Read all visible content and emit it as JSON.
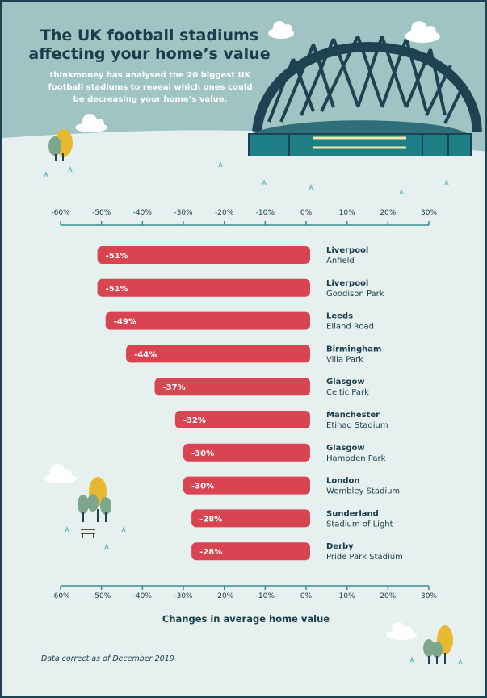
{
  "title_line1": "The UK football stadiums",
  "title_line2": "affecting your home’s value",
  "subtitle": "thinkmoney has analysed the 20 biggest UK football stadiums to reveal which ones could be decreasing your home’s value.",
  "footnote": "Data correct as of December 2019",
  "colors": {
    "bar": "#d94452",
    "text": "#1b3c4a",
    "axis": "#3a8e94",
    "header": "#9fc4c3",
    "background": "#e6f0ef"
  },
  "chart_data": {
    "type": "bar",
    "orientation": "horizontal",
    "xlabel": "Changes in average home value",
    "xlim": [
      -60,
      30
    ],
    "xticks": [
      "-60%",
      "-50%",
      "-40%",
      "-30%",
      "-20%",
      "-10%",
      "0%",
      "10%",
      "20%",
      "30%"
    ],
    "xtick_values": [
      -60,
      -50,
      -40,
      -30,
      -20,
      -10,
      0,
      10,
      20,
      30
    ],
    "categories": [
      {
        "city": "Liverpool",
        "stadium": "Anfield"
      },
      {
        "city": "Liverpool",
        "stadium": "Goodison Park"
      },
      {
        "city": "Leeds",
        "stadium": "Elland Road"
      },
      {
        "city": "Birmingham",
        "stadium": "Villa Park"
      },
      {
        "city": "Glasgow",
        "stadium": "Celtic Park"
      },
      {
        "city": "Manchester",
        "stadium": "Etihad Stadium"
      },
      {
        "city": "Glasgow",
        "stadium": "Hampden Park"
      },
      {
        "city": "London",
        "stadium": "Wembley Stadium"
      },
      {
        "city": "Sunderland",
        "stadium": "Stadium of Light"
      },
      {
        "city": "Derby",
        "stadium": "Pride Park Stadium"
      }
    ],
    "values": [
      -51,
      -51,
      -49,
      -44,
      -37,
      -32,
      -30,
      -30,
      -28,
      -28
    ],
    "value_labels": [
      "-51%",
      "-51%",
      "-49%",
      "-44%",
      "-37%",
      "-32%",
      "-30%",
      "-30%",
      "-28%",
      "-28%"
    ]
  }
}
